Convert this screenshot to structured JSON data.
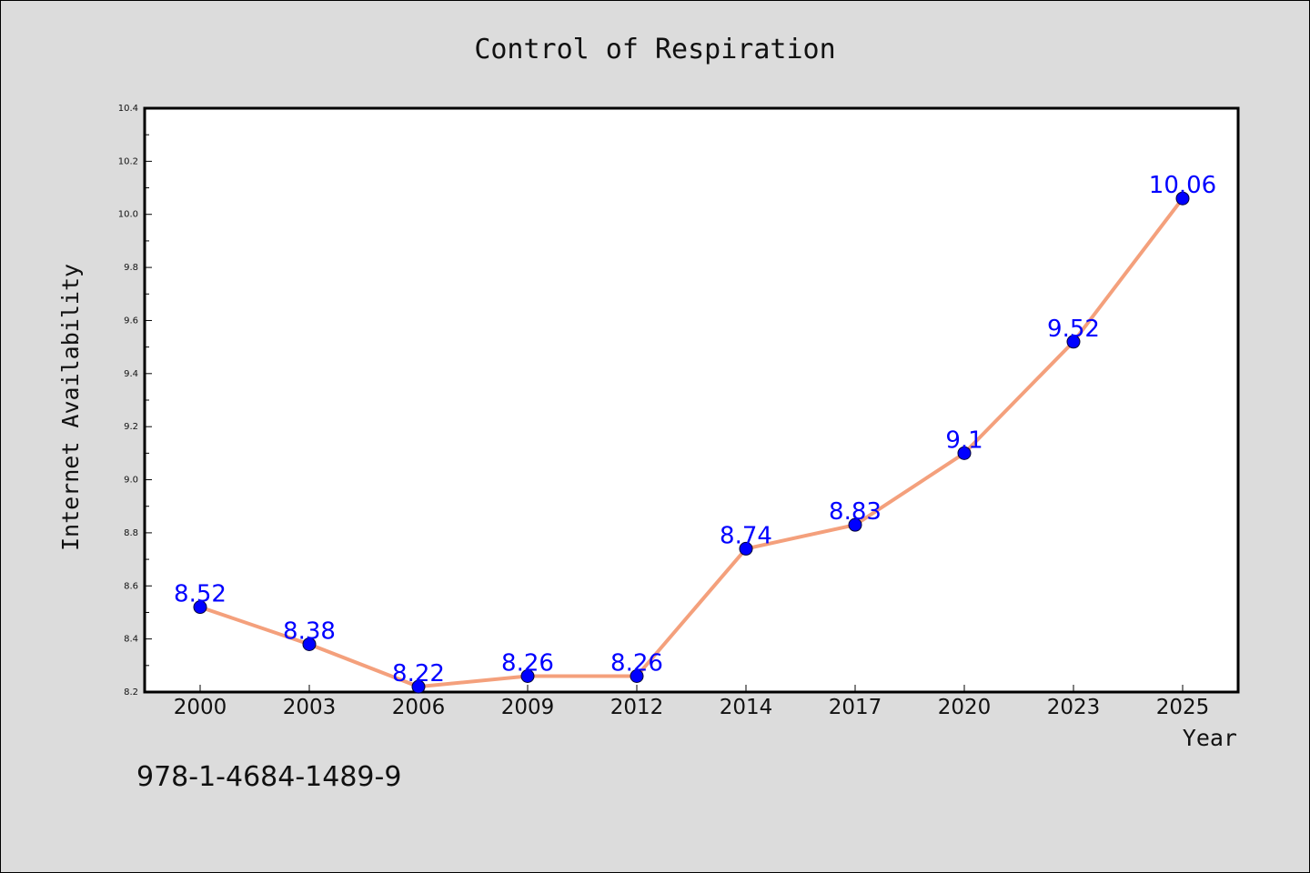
{
  "chart_data": {
    "type": "line",
    "title": "Control of Respiration",
    "xlabel": "Year",
    "ylabel": "Internet Availability",
    "categories": [
      "2000",
      "2003",
      "2006",
      "2009",
      "2012",
      "2014",
      "2017",
      "2020",
      "2023",
      "2025"
    ],
    "series": [
      {
        "values": [
          8.52,
          8.38,
          8.22,
          8.26,
          8.26,
          8.74,
          8.83,
          9.1,
          9.52,
          10.06
        ],
        "labels": [
          "8.52",
          "8.38",
          "8.22",
          "8.26",
          "8.26",
          "8.74",
          "8.83",
          "9.1",
          "9.52",
          "10.06"
        ]
      }
    ],
    "ylim": [
      8.2,
      10.4
    ],
    "yticks": [
      "8.2",
      "8.4",
      "8.6",
      "8.8",
      "9.0",
      "9.2",
      "9.4",
      "9.6",
      "9.8",
      "10.0",
      "10.2",
      "10.4"
    ],
    "grid": false,
    "legend": "none",
    "colors": {
      "line": "#f4a07c",
      "marker": "#0000ff",
      "data_label": "#0000ff",
      "background": "#dcdcdc",
      "plot_background": "#ffffff"
    }
  },
  "footer": {
    "isbn": "978-1-4684-1489-9"
  }
}
